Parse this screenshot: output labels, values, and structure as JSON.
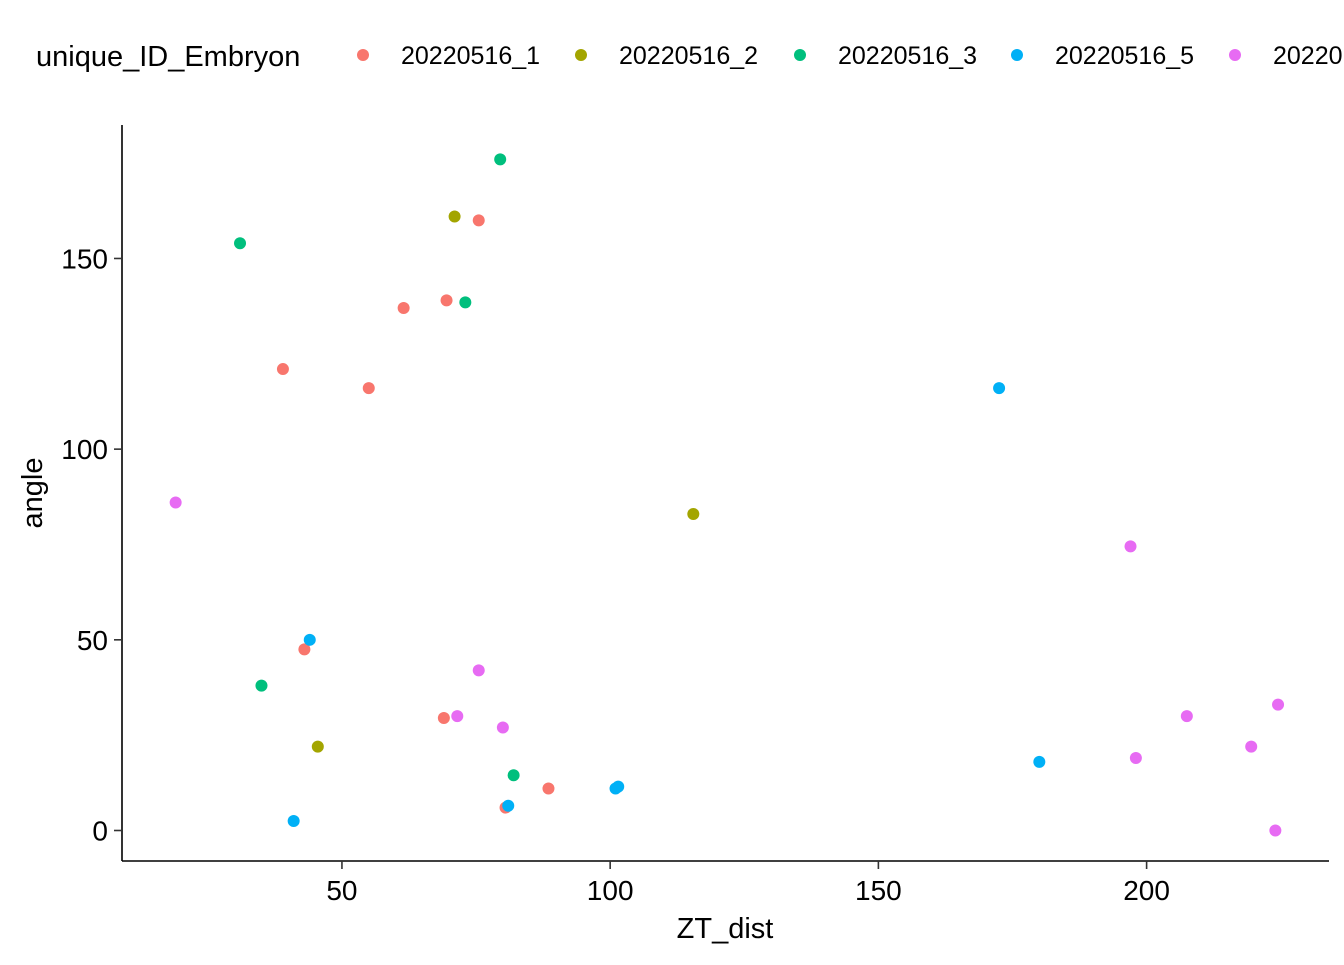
{
  "chart_data": {
    "type": "scatter",
    "xlabel": "ZT_dist",
    "ylabel": "angle",
    "xlim": [
      9,
      234
    ],
    "ylim": [
      -8,
      185
    ],
    "x_ticks": [
      50,
      100,
      150,
      200
    ],
    "y_ticks": [
      0,
      50,
      100,
      150
    ],
    "legend": {
      "title": "unique_ID_Embryon",
      "position": "top"
    },
    "grid": false,
    "series": [
      {
        "name": "20220516_1",
        "color": "#F8766D",
        "points": [
          {
            "x": 39,
            "y": 121
          },
          {
            "x": 55,
            "y": 116
          },
          {
            "x": 61.5,
            "y": 137
          },
          {
            "x": 69.5,
            "y": 139
          },
          {
            "x": 75.5,
            "y": 160
          },
          {
            "x": 43,
            "y": 47.5
          },
          {
            "x": 69,
            "y": 29.5
          },
          {
            "x": 88.5,
            "y": 11
          },
          {
            "x": 80.5,
            "y": 6
          }
        ]
      },
      {
        "name": "20220516_2",
        "color": "#A3A500",
        "points": [
          {
            "x": 71,
            "y": 161
          },
          {
            "x": 115.5,
            "y": 83
          },
          {
            "x": 45.5,
            "y": 22
          }
        ]
      },
      {
        "name": "20220516_3",
        "color": "#00BF7D",
        "points": [
          {
            "x": 79.5,
            "y": 176
          },
          {
            "x": 31,
            "y": 154
          },
          {
            "x": 73,
            "y": 138.5
          },
          {
            "x": 35,
            "y": 38
          },
          {
            "x": 82,
            "y": 14.5
          }
        ]
      },
      {
        "name": "20220516_5",
        "color": "#00B0F6",
        "points": [
          {
            "x": 172.5,
            "y": 116
          },
          {
            "x": 44,
            "y": 50
          },
          {
            "x": 41,
            "y": 2.5
          },
          {
            "x": 81,
            "y": 6.5
          },
          {
            "x": 101,
            "y": 11
          },
          {
            "x": 101.5,
            "y": 11.5
          },
          {
            "x": 180,
            "y": 18
          }
        ]
      },
      {
        "name": "20220",
        "color": "#E76BF3",
        "points": [
          {
            "x": 19,
            "y": 86
          },
          {
            "x": 197,
            "y": 74.5
          },
          {
            "x": 75.5,
            "y": 42
          },
          {
            "x": 71.5,
            "y": 30
          },
          {
            "x": 80,
            "y": 27
          },
          {
            "x": 207.5,
            "y": 30
          },
          {
            "x": 224.5,
            "y": 33
          },
          {
            "x": 198,
            "y": 19
          },
          {
            "x": 219.5,
            "y": 22
          },
          {
            "x": 224,
            "y": 0
          }
        ]
      }
    ]
  }
}
